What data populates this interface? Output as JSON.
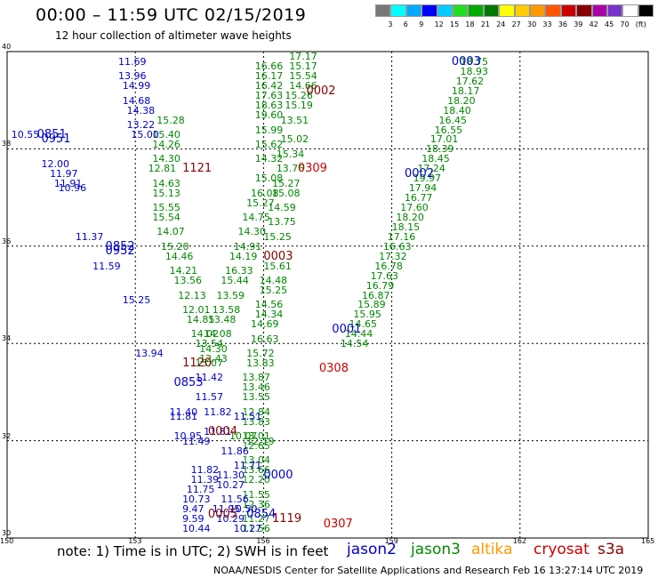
{
  "title": "00:00 – 11:59 UTC 02/15/2019",
  "subtitle": "12 hour collection of altimeter wave heights",
  "colorbar": {
    "colors": [
      "#777777",
      "#00ffff",
      "#00aaff",
      "#0000ff",
      "#00ccff",
      "#22dd22",
      "#00aa00",
      "#007700",
      "#ffff00",
      "#ffcc00",
      "#ff9900",
      "#ff5500",
      "#cc0000",
      "#880000",
      "#aa00aa",
      "#7733cc",
      "#ffffff",
      "#000000"
    ],
    "labels": [
      "3",
      "6",
      "9",
      "12",
      "15",
      "18",
      "21",
      "24",
      "27",
      "30",
      "33",
      "36",
      "39",
      "42",
      "45",
      "70",
      "(ft)"
    ]
  },
  "map": {
    "lon_range": [
      150,
      165
    ],
    "lat_range": [
      30,
      40
    ],
    "x_ticks": [
      "150",
      "153",
      "156",
      "159",
      "162",
      "165"
    ],
    "y_ticks": [
      "40",
      "38",
      "36",
      "34",
      "32",
      "30"
    ]
  },
  "note": "note:  1) Time is in UTC;  2) SWH is in feet",
  "satellites": [
    {
      "name": "jason2",
      "color": "#0000cc"
    },
    {
      "name": "jason3",
      "color": "#008800"
    },
    {
      "name": "altika",
      "color": "#ff9900"
    },
    {
      "name": "cryosat",
      "color": "#cc0000"
    },
    {
      "name": "s3a",
      "color": "#880000"
    }
  ],
  "credit": "NOAA/NESDIS Center for Satellite Applications and Research    Feb 16 13:27:14 UTC 2019",
  "passes": [
    {
      "id": "0003",
      "lon": 160.4,
      "lat": 39.8,
      "color": "#0000cc"
    },
    {
      "id": "0002",
      "lon": 157.0,
      "lat": 39.2,
      "color": "#880000"
    },
    {
      "id": "0309",
      "lon": 156.8,
      "lat": 37.6,
      "color": "#cc0000"
    },
    {
      "id": "0002",
      "lon": 159.3,
      "lat": 37.5,
      "color": "#0000cc"
    },
    {
      "id": "1121",
      "lon": 154.1,
      "lat": 37.6,
      "color": "#880000"
    },
    {
      "id": "0851",
      "lon": 150.7,
      "lat": 38.3,
      "color": "#0000cc"
    },
    {
      "id": "0951",
      "lon": 150.8,
      "lat": 38.2,
      "color": "#0000cc"
    },
    {
      "id": "0852",
      "lon": 152.3,
      "lat": 36.0,
      "color": "#0000cc"
    },
    {
      "id": "0952",
      "lon": 152.3,
      "lat": 35.9,
      "color": "#0000cc"
    },
    {
      "id": "0003",
      "lon": 156.0,
      "lat": 35.8,
      "color": "#880000"
    },
    {
      "id": "0001",
      "lon": 157.6,
      "lat": 34.3,
      "color": "#0000cc"
    },
    {
      "id": "1120",
      "lon": 154.1,
      "lat": 33.6,
      "color": "#880000"
    },
    {
      "id": "0308",
      "lon": 157.3,
      "lat": 33.5,
      "color": "#cc0000"
    },
    {
      "id": "0853",
      "lon": 153.9,
      "lat": 33.2,
      "color": "#0000cc"
    },
    {
      "id": "0004",
      "lon": 154.7,
      "lat": 32.2,
      "color": "#880000"
    },
    {
      "id": "0000",
      "lon": 156.0,
      "lat": 31.3,
      "color": "#0000cc"
    },
    {
      "id": "0854",
      "lon": 155.6,
      "lat": 30.5,
      "color": "#0000cc"
    },
    {
      "id": "0005",
      "lon": 154.7,
      "lat": 30.5,
      "color": "#880000"
    },
    {
      "id": "1119",
      "lon": 156.2,
      "lat": 30.4,
      "color": "#880000"
    },
    {
      "id": "0307",
      "lon": 157.4,
      "lat": 30.3,
      "color": "#cc0000"
    }
  ],
  "tracks": [
    {
      "name": "jason3-asc-east",
      "color": "#008800",
      "points": [
        {
          "lon": 160.6,
          "lat": 39.8,
          "v": "18.75"
        },
        {
          "lon": 160.6,
          "lat": 39.6,
          "v": "18.93"
        },
        {
          "lon": 160.5,
          "lat": 39.4,
          "v": "17.62"
        },
        {
          "lon": 160.4,
          "lat": 39.2,
          "v": "18.17"
        },
        {
          "lon": 160.3,
          "lat": 39.0,
          "v": "18.20"
        },
        {
          "lon": 160.2,
          "lat": 38.8,
          "v": "18.40"
        },
        {
          "lon": 160.1,
          "lat": 38.6,
          "v": "16.45"
        },
        {
          "lon": 160.0,
          "lat": 38.4,
          "v": "16.55"
        },
        {
          "lon": 159.9,
          "lat": 38.2,
          "v": "17.01"
        },
        {
          "lon": 159.8,
          "lat": 38.0,
          "v": "18.39"
        },
        {
          "lon": 159.7,
          "lat": 37.8,
          "v": "18.45"
        },
        {
          "lon": 159.6,
          "lat": 37.6,
          "v": "17.24"
        },
        {
          "lon": 159.5,
          "lat": 37.4,
          "v": "19.97"
        },
        {
          "lon": 159.4,
          "lat": 37.2,
          "v": "17.94"
        },
        {
          "lon": 159.3,
          "lat": 37.0,
          "v": "16.77"
        },
        {
          "lon": 159.2,
          "lat": 36.8,
          "v": "17.60"
        },
        {
          "lon": 159.1,
          "lat": 36.6,
          "v": "18.20"
        },
        {
          "lon": 159.0,
          "lat": 36.4,
          "v": "18.15"
        },
        {
          "lon": 158.9,
          "lat": 36.2,
          "v": "17.16"
        },
        {
          "lon": 158.8,
          "lat": 36.0,
          "v": "16.63"
        },
        {
          "lon": 158.7,
          "lat": 35.8,
          "v": "17.32"
        },
        {
          "lon": 158.6,
          "lat": 35.6,
          "v": "16.78"
        },
        {
          "lon": 158.5,
          "lat": 35.4,
          "v": "17.63"
        },
        {
          "lon": 158.4,
          "lat": 35.2,
          "v": "16.79"
        },
        {
          "lon": 158.3,
          "lat": 35.0,
          "v": "16.87"
        },
        {
          "lon": 158.2,
          "lat": 34.8,
          "v": "15.89"
        },
        {
          "lon": 158.1,
          "lat": 34.6,
          "v": "15.95"
        },
        {
          "lon": 158.0,
          "lat": 34.4,
          "v": "14.65"
        },
        {
          "lon": 157.9,
          "lat": 34.2,
          "v": "14.44"
        },
        {
          "lon": 157.8,
          "lat": 34.0,
          "v": "14.54"
        }
      ]
    },
    {
      "name": "jason3-desc-mid",
      "color": "#008800",
      "points": [
        {
          "lon": 156.6,
          "lat": 39.9,
          "v": "17.17"
        },
        {
          "lon": 156.6,
          "lat": 39.7,
          "v": "15.17"
        },
        {
          "lon": 156.6,
          "lat": 39.5,
          "v": "15.54"
        },
        {
          "lon": 156.6,
          "lat": 39.3,
          "v": "14.66"
        },
        {
          "lon": 156.5,
          "lat": 39.1,
          "v": "15.26"
        },
        {
          "lon": 156.5,
          "lat": 38.9,
          "v": "15.19"
        },
        {
          "lon": 156.4,
          "lat": 38.6,
          "v": "13.51"
        },
        {
          "lon": 156.4,
          "lat": 38.2,
          "v": "15.02"
        },
        {
          "lon": 156.3,
          "lat": 37.9,
          "v": "15.34"
        },
        {
          "lon": 156.3,
          "lat": 37.6,
          "v": "13.76"
        },
        {
          "lon": 156.2,
          "lat": 37.3,
          "v": "15.27"
        },
        {
          "lon": 156.2,
          "lat": 37.1,
          "v": "15.08"
        },
        {
          "lon": 156.1,
          "lat": 36.8,
          "v": "14.59"
        },
        {
          "lon": 156.1,
          "lat": 36.5,
          "v": "13.75"
        },
        {
          "lon": 156.0,
          "lat": 36.2,
          "v": "15.25"
        },
        {
          "lon": 156.0,
          "lat": 35.6,
          "v": "15.61"
        },
        {
          "lon": 155.9,
          "lat": 35.3,
          "v": "14.48"
        },
        {
          "lon": 155.9,
          "lat": 35.1,
          "v": "15.25"
        },
        {
          "lon": 155.8,
          "lat": 34.8,
          "v": "14.56"
        },
        {
          "lon": 155.8,
          "lat": 34.6,
          "v": "14.34"
        },
        {
          "lon": 155.7,
          "lat": 34.4,
          "v": "14.69"
        },
        {
          "lon": 155.7,
          "lat": 34.1,
          "v": "16.63"
        },
        {
          "lon": 155.6,
          "lat": 33.8,
          "v": "15.72"
        },
        {
          "lon": 155.6,
          "lat": 33.6,
          "v": "13.83"
        },
        {
          "lon": 155.5,
          "lat": 33.3,
          "v": "13.87"
        },
        {
          "lon": 155.5,
          "lat": 33.1,
          "v": "13.46"
        },
        {
          "lon": 155.5,
          "lat": 32.9,
          "v": "13.55"
        },
        {
          "lon": 155.5,
          "lat": 32.6,
          "v": "12.84"
        },
        {
          "lon": 155.5,
          "lat": 32.4,
          "v": "13.83"
        },
        {
          "lon": 155.5,
          "lat": 32.1,
          "v": "13.01"
        },
        {
          "lon": 155.5,
          "lat": 31.9,
          "v": "12.65"
        },
        {
          "lon": 155.5,
          "lat": 31.6,
          "v": "13.04"
        },
        {
          "lon": 155.5,
          "lat": 31.4,
          "v": "13.66"
        },
        {
          "lon": 155.5,
          "lat": 31.2,
          "v": "12.20"
        },
        {
          "lon": 155.5,
          "lat": 30.9,
          "v": "11.55"
        },
        {
          "lon": 155.5,
          "lat": 30.7,
          "v": "12.36"
        },
        {
          "lon": 155.5,
          "lat": 30.4,
          "v": "11.27"
        },
        {
          "lon": 155.5,
          "lat": 30.2,
          "v": "11.56"
        }
      ]
    },
    {
      "name": "jason3-desc-west",
      "color": "#008800",
      "points": [
        {
          "lon": 155.8,
          "lat": 39.7,
          "v": "16.66"
        },
        {
          "lon": 155.8,
          "lat": 39.5,
          "v": "16.17"
        },
        {
          "lon": 155.8,
          "lat": 39.3,
          "v": "16.42"
        },
        {
          "lon": 155.8,
          "lat": 39.1,
          "v": "17.63"
        },
        {
          "lon": 155.8,
          "lat": 38.9,
          "v": "18.63"
        },
        {
          "lon": 155.8,
          "lat": 38.7,
          "v": "19.60"
        },
        {
          "lon": 155.8,
          "lat": 38.4,
          "v": "15.99"
        },
        {
          "lon": 155.8,
          "lat": 38.1,
          "v": "15.62"
        },
        {
          "lon": 155.8,
          "lat": 37.8,
          "v": "14.32"
        },
        {
          "lon": 155.8,
          "lat": 37.4,
          "v": "15.08"
        },
        {
          "lon": 155.7,
          "lat": 37.1,
          "v": "16.08"
        },
        {
          "lon": 155.6,
          "lat": 36.9,
          "v": "15.27"
        },
        {
          "lon": 155.5,
          "lat": 36.6,
          "v": "14.75"
        },
        {
          "lon": 155.4,
          "lat": 36.3,
          "v": "14.30"
        },
        {
          "lon": 155.3,
          "lat": 36.0,
          "v": "14.91"
        },
        {
          "lon": 155.2,
          "lat": 35.8,
          "v": "14.19"
        },
        {
          "lon": 155.1,
          "lat": 35.5,
          "v": "16.33"
        },
        {
          "lon": 155.0,
          "lat": 35.3,
          "v": "15.44"
        },
        {
          "lon": 154.9,
          "lat": 35.0,
          "v": "13.59"
        },
        {
          "lon": 154.8,
          "lat": 34.7,
          "v": "13.58"
        },
        {
          "lon": 154.7,
          "lat": 34.5,
          "v": "13.48"
        },
        {
          "lon": 154.6,
          "lat": 34.2,
          "v": "14.08"
        },
        {
          "lon": 154.5,
          "lat": 33.9,
          "v": "14.30"
        },
        {
          "lon": 154.4,
          "lat": 33.6,
          "v": "15.07"
        }
      ]
    },
    {
      "name": "jason3-desc-far",
      "color": "#008800",
      "points": [
        {
          "lon": 153.5,
          "lat": 38.6,
          "v": "15.28"
        },
        {
          "lon": 153.4,
          "lat": 38.3,
          "v": "15.40"
        },
        {
          "lon": 153.4,
          "lat": 38.1,
          "v": "14.26"
        },
        {
          "lon": 153.4,
          "lat": 37.8,
          "v": "14.30"
        },
        {
          "lon": 153.3,
          "lat": 37.6,
          "v": "12.81"
        },
        {
          "lon": 153.4,
          "lat": 37.3,
          "v": "14.63"
        },
        {
          "lon": 153.4,
          "lat": 37.1,
          "v": "15.13"
        },
        {
          "lon": 153.4,
          "lat": 36.8,
          "v": "15.55"
        },
        {
          "lon": 153.4,
          "lat": 36.6,
          "v": "15.54"
        },
        {
          "lon": 153.5,
          "lat": 36.3,
          "v": "14.07"
        },
        {
          "lon": 153.6,
          "lat": 36.0,
          "v": "15.20"
        },
        {
          "lon": 153.7,
          "lat": 35.8,
          "v": "14.46"
        },
        {
          "lon": 153.8,
          "lat": 35.5,
          "v": "14.21"
        },
        {
          "lon": 153.9,
          "lat": 35.3,
          "v": "13.56"
        },
        {
          "lon": 154.0,
          "lat": 35.0,
          "v": "12.13"
        },
        {
          "lon": 154.1,
          "lat": 34.7,
          "v": "12.01"
        },
        {
          "lon": 154.2,
          "lat": 34.5,
          "v": "14.85"
        },
        {
          "lon": 154.3,
          "lat": 34.2,
          "v": "14.02"
        },
        {
          "lon": 154.4,
          "lat": 34.0,
          "v": "13.54"
        },
        {
          "lon": 154.5,
          "lat": 33.7,
          "v": "12.43"
        }
      ]
    },
    {
      "name": "jason2-desc-north",
      "color": "#0000cc",
      "points": [
        {
          "lon": 152.6,
          "lat": 39.8,
          "v": "11.69"
        },
        {
          "lon": 152.6,
          "lat": 39.5,
          "v": "13.96"
        },
        {
          "lon": 152.7,
          "lat": 39.3,
          "v": "14.99"
        },
        {
          "lon": 152.7,
          "lat": 39.0,
          "v": "14.68"
        },
        {
          "lon": 152.8,
          "lat": 38.8,
          "v": "14.38"
        },
        {
          "lon": 152.8,
          "lat": 38.5,
          "v": "13.22"
        },
        {
          "lon": 152.9,
          "lat": 38.3,
          "v": "15.00"
        }
      ]
    },
    {
      "name": "jason2-desc-west",
      "color": "#0000cc",
      "points": [
        {
          "lon": 150.1,
          "lat": 38.3,
          "v": "10.55"
        },
        {
          "lon": 150.8,
          "lat": 37.7,
          "v": "12.00"
        },
        {
          "lon": 151.0,
          "lat": 37.5,
          "v": "11.97"
        },
        {
          "lon": 151.1,
          "lat": 37.3,
          "v": "11.91"
        },
        {
          "lon": 151.2,
          "lat": 37.2,
          "v": "10.96"
        },
        {
          "lon": 151.6,
          "lat": 36.2,
          "v": "11.37"
        },
        {
          "lon": 152.0,
          "lat": 35.6,
          "v": "11.59"
        },
        {
          "lon": 152.7,
          "lat": 34.9,
          "v": "15.25"
        },
        {
          "lon": 153.0,
          "lat": 33.8,
          "v": "13.94"
        }
      ]
    },
    {
      "name": "jason2-south",
      "color": "#0000cc",
      "points": [
        {
          "lon": 154.4,
          "lat": 33.3,
          "v": "11.42"
        },
        {
          "lon": 154.4,
          "lat": 32.9,
          "v": "11.57"
        },
        {
          "lon": 154.6,
          "lat": 32.6,
          "v": "11.82"
        },
        {
          "lon": 153.8,
          "lat": 32.6,
          "v": "11.40"
        },
        {
          "lon": 153.8,
          "lat": 32.5,
          "v": "11.81"
        },
        {
          "lon": 153.9,
          "lat": 32.1,
          "v": "10.95"
        },
        {
          "lon": 154.1,
          "lat": 32.0,
          "v": "11.49"
        },
        {
          "lon": 154.6,
          "lat": 32.2,
          "v": "11.81"
        },
        {
          "lon": 155.3,
          "lat": 32.5,
          "v": "11.51"
        },
        {
          "lon": 155.0,
          "lat": 31.8,
          "v": "11.86"
        },
        {
          "lon": 155.3,
          "lat": 31.5,
          "v": "11.71"
        },
        {
          "lon": 154.9,
          "lat": 31.3,
          "v": "11.30"
        },
        {
          "lon": 154.3,
          "lat": 31.4,
          "v": "11.82"
        },
        {
          "lon": 154.3,
          "lat": 31.2,
          "v": "11.39"
        },
        {
          "lon": 154.2,
          "lat": 31.0,
          "v": "11.75"
        },
        {
          "lon": 154.9,
          "lat": 31.1,
          "v": "10.27"
        },
        {
          "lon": 154.1,
          "lat": 30.8,
          "v": "10.73"
        },
        {
          "lon": 155.0,
          "lat": 30.8,
          "v": "11.56"
        },
        {
          "lon": 154.1,
          "lat": 30.6,
          "v": "9.47"
        },
        {
          "lon": 154.8,
          "lat": 30.6,
          "v": "11.95"
        },
        {
          "lon": 155.2,
          "lat": 30.6,
          "v": "10.50"
        },
        {
          "lon": 154.1,
          "lat": 30.4,
          "v": "9.59"
        },
        {
          "lon": 154.9,
          "lat": 30.4,
          "v": "10.29"
        },
        {
          "lon": 154.1,
          "lat": 30.2,
          "v": "10.44"
        },
        {
          "lon": 155.3,
          "lat": 30.2,
          "v": "10.27"
        }
      ]
    },
    {
      "name": "jason3-green-misc",
      "color": "#008800",
      "points": [
        {
          "lon": 155.6,
          "lat": 32.0,
          "v": "12.19"
        },
        {
          "lon": 155.2,
          "lat": 32.1,
          "v": "10.07"
        }
      ]
    }
  ]
}
